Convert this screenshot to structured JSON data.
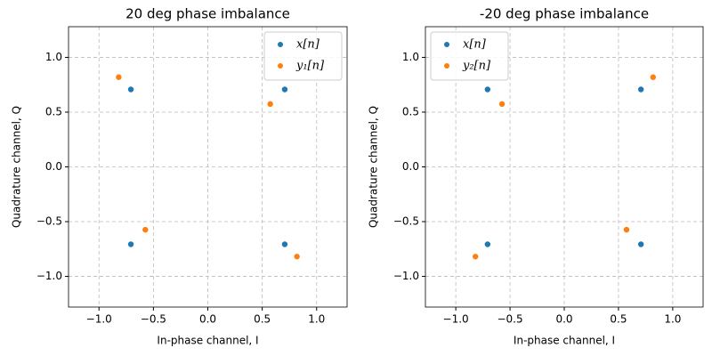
{
  "chart_data": [
    {
      "type": "scatter",
      "title": "20 deg phase imbalance",
      "xlabel": "In-phase channel, I",
      "ylabel": "Quadrature channel, Q",
      "xlim": [
        -1.28,
        1.28
      ],
      "ylim": [
        -1.28,
        1.28
      ],
      "xticks": [
        {
          "value": -1.0,
          "label": "−1.0"
        },
        {
          "value": -0.5,
          "label": "−0.5"
        },
        {
          "value": 0.0,
          "label": "0.0"
        },
        {
          "value": 0.5,
          "label": "0.5"
        },
        {
          "value": 1.0,
          "label": "1.0"
        }
      ],
      "yticks": [
        {
          "value": -1.0,
          "label": "−1.0"
        },
        {
          "value": -0.5,
          "label": "−0.5"
        },
        {
          "value": 0.0,
          "label": "0.0"
        },
        {
          "value": 0.5,
          "label": "0.5"
        },
        {
          "value": 1.0,
          "label": "1.0"
        }
      ],
      "grid": true,
      "legend": "upper right",
      "series": [
        {
          "name": "x[n]",
          "color": "#1f77b4",
          "x": [
            -0.707,
            0.707,
            -0.707,
            0.707
          ],
          "values": [
            0.707,
            0.707,
            -0.707,
            -0.707
          ]
        },
        {
          "name": "y₁[n]",
          "color": "#ff7f0e",
          "x": [
            -0.819,
            0.574,
            -0.574,
            0.819
          ],
          "values": [
            0.819,
            0.574,
            -0.574,
            -0.819
          ]
        }
      ]
    },
    {
      "type": "scatter",
      "title": "-20 deg phase imbalance",
      "xlabel": "In-phase channel, I",
      "ylabel": "Quadrature channel, Q",
      "xlim": [
        -1.28,
        1.28
      ],
      "ylim": [
        -1.28,
        1.28
      ],
      "xticks": [
        {
          "value": -1.0,
          "label": "−1.0"
        },
        {
          "value": -0.5,
          "label": "−0.5"
        },
        {
          "value": 0.0,
          "label": "0.0"
        },
        {
          "value": 0.5,
          "label": "0.5"
        },
        {
          "value": 1.0,
          "label": "1.0"
        }
      ],
      "yticks": [
        {
          "value": -1.0,
          "label": "−1.0"
        },
        {
          "value": -0.5,
          "label": "−0.5"
        },
        {
          "value": 0.0,
          "label": "0.0"
        },
        {
          "value": 0.5,
          "label": "0.5"
        },
        {
          "value": 1.0,
          "label": "1.0"
        }
      ],
      "grid": true,
      "legend": "upper left",
      "series": [
        {
          "name": "x[n]",
          "color": "#1f77b4",
          "x": [
            -0.707,
            0.707,
            -0.707,
            0.707
          ],
          "values": [
            0.707,
            0.707,
            -0.707,
            -0.707
          ]
        },
        {
          "name": "y₂[n]",
          "color": "#ff7f0e",
          "x": [
            -0.574,
            0.819,
            -0.819,
            0.574
          ],
          "values": [
            0.574,
            0.819,
            -0.819,
            -0.574
          ]
        }
      ]
    }
  ]
}
